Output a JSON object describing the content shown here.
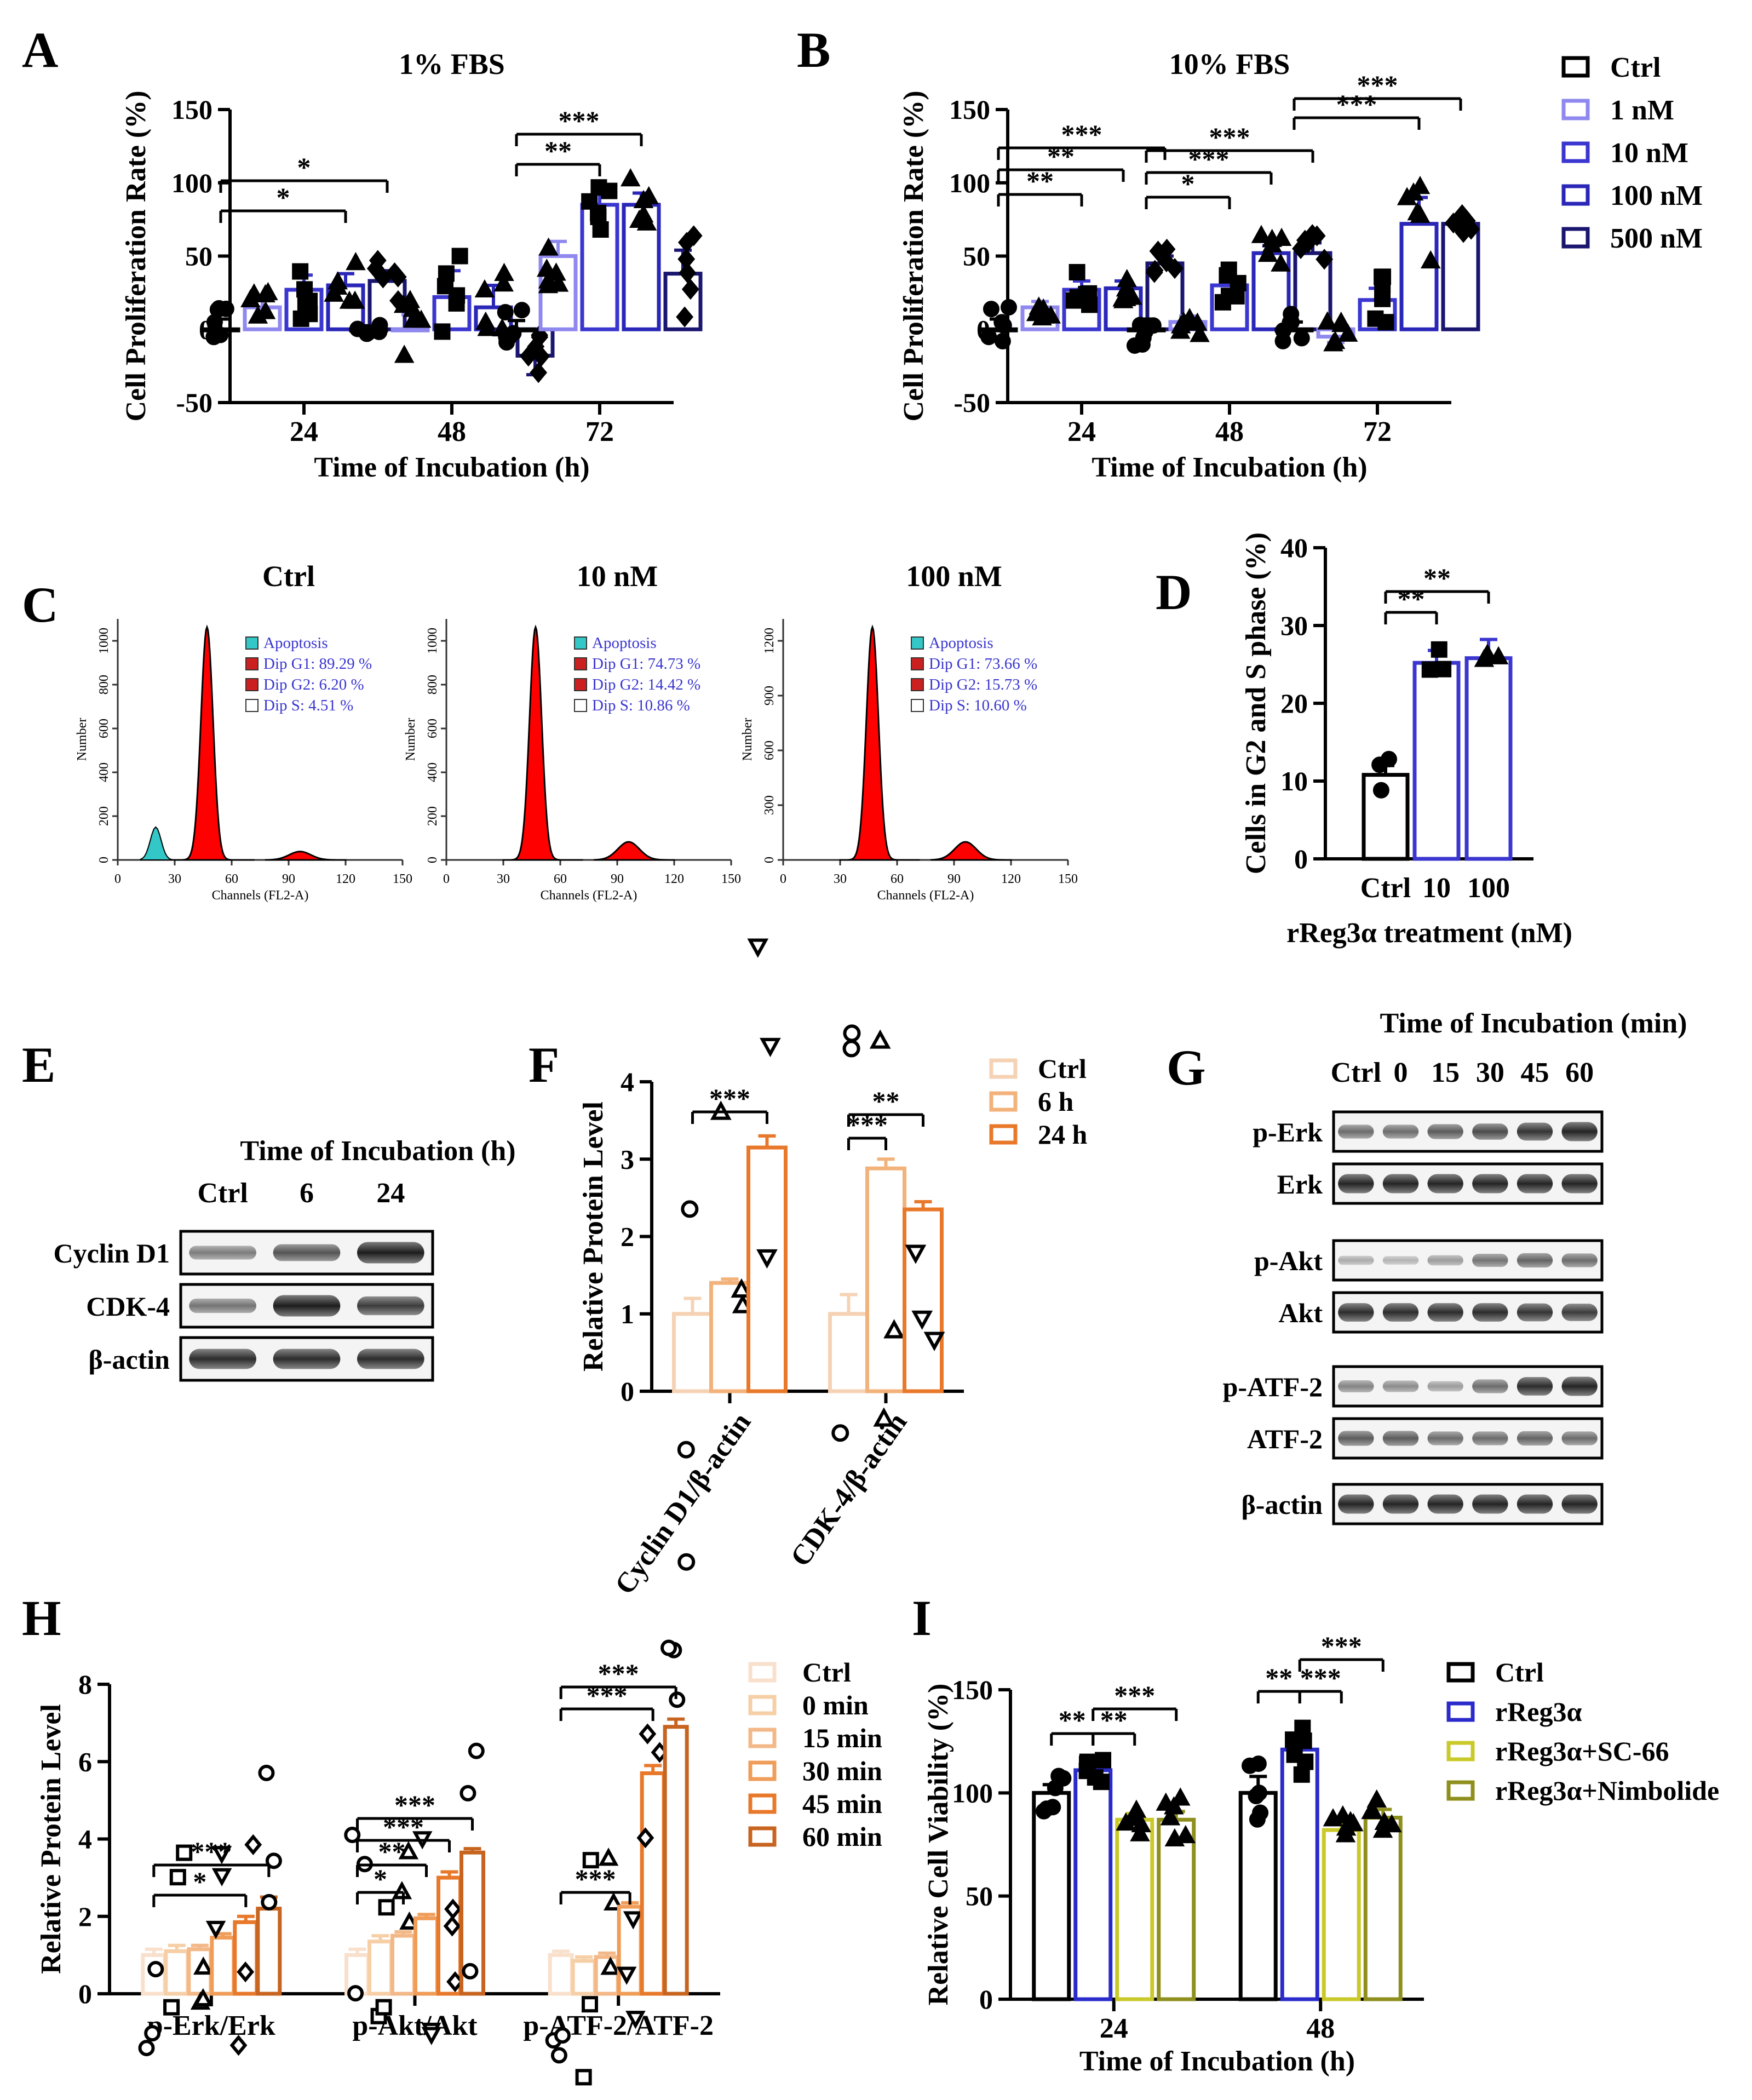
{
  "colors": {
    "ctrl": "#000000",
    "nm1": "#8f88ef",
    "nm10": "#3a36cf",
    "nm100": "#2a26b8",
    "nm500": "#1a1670",
    "o_ctrl": "#f6d2b4",
    "o_mid": "#f2b27a",
    "o_dark": "#e8782a",
    "i_rreg": "#2b2bcc",
    "i_sc": "#c9c92a",
    "i_nimb": "#8f8f1e",
    "flow_red": "#ff0000",
    "flow_cyan": "#33c7c7",
    "flow_text": "#3a36cf"
  },
  "panels": {
    "A": "A",
    "B": "B",
    "C": "C",
    "D": "D",
    "E": "E",
    "F": "F",
    "G": "G",
    "H": "H",
    "I": "I"
  },
  "legend_AB": [
    "Ctrl",
    "1 nM",
    "10 nM",
    "100 nM",
    "500 nM"
  ],
  "legend_F": [
    "Ctrl",
    "6 h",
    "24 h"
  ],
  "legend_H": [
    "Ctrl",
    "0 min",
    "15 min",
    "30 min",
    "45 min",
    "60 min"
  ],
  "legend_I": [
    "Ctrl",
    "rReg3α",
    "rReg3α+SC-66",
    "rReg3α+Nimbolide"
  ],
  "chart_data": [
    {
      "id": "A",
      "type": "bar",
      "title": "1% FBS",
      "xlabel": "Time of Incubation (h)",
      "ylabel": "Cell Proliferation Rate (%)",
      "ylim": [
        -50,
        150
      ],
      "yticks": [
        "-50",
        "0",
        "50",
        "100",
        "150"
      ],
      "categories": [
        "24",
        "48",
        "72"
      ],
      "series": [
        {
          "name": "Ctrl",
          "values": [
            0,
            0,
            0
          ],
          "err": [
            7,
            0,
            6
          ]
        },
        {
          "name": "1 nM",
          "values": [
            15,
            0,
            50
          ],
          "err": [
            5,
            10,
            10
          ]
        },
        {
          "name": "10 nM",
          "values": [
            27,
            22,
            85
          ],
          "err": [
            10,
            18,
            8
          ]
        },
        {
          "name": "100 nM",
          "values": [
            30,
            15,
            85
          ],
          "err": [
            8,
            15,
            8
          ]
        },
        {
          "name": "500 nM",
          "values": [
            33,
            -18,
            38
          ],
          "err": [
            7,
            13,
            16
          ]
        }
      ],
      "significance": [
        "*",
        "*",
        "**",
        "***"
      ]
    },
    {
      "id": "B",
      "type": "bar",
      "title": "10% FBS",
      "xlabel": "Time of Incubation (h)",
      "ylabel": "Cell Proliferation Rate (%)",
      "ylim": [
        -50,
        150
      ],
      "yticks": [
        "-50",
        "0",
        "50",
        "100",
        "150"
      ],
      "categories": [
        "24",
        "48",
        "72"
      ],
      "series": [
        {
          "name": "Ctrl",
          "values": [
            0,
            0,
            0
          ],
          "err": [
            7,
            7,
            5
          ]
        },
        {
          "name": "1 nM",
          "values": [
            15,
            5,
            -5
          ],
          "err": [
            4,
            4,
            4
          ]
        },
        {
          "name": "10 nM",
          "values": [
            27,
            30,
            20
          ],
          "err": [
            6,
            5,
            8
          ]
        },
        {
          "name": "100 nM",
          "values": [
            28,
            52,
            72
          ],
          "err": [
            5,
            5,
            18
          ]
        },
        {
          "name": "500 nM",
          "values": [
            45,
            52,
            72
          ],
          "err": [
            5,
            7,
            3
          ]
        }
      ],
      "significance": [
        "**",
        "**",
        "***",
        "*",
        "***",
        "***",
        "***",
        "***"
      ]
    },
    {
      "id": "C",
      "type": "histogram",
      "xlabel": "Channels (FL2-A)",
      "ylabel": "Number",
      "xticks": [
        "0",
        "30",
        "60",
        "90",
        "120",
        "150"
      ],
      "plots": [
        {
          "title": "Ctrl",
          "yticks": [
            "0",
            "200",
            "400",
            "600",
            "800",
            "1000"
          ],
          "legend": [
            "Apoptosis",
            "Dip G1: 89.29 %",
            "Dip G2: 6.20 %",
            "Dip S: 4.51 %"
          ]
        },
        {
          "title": "10 nM",
          "yticks": [
            "0",
            "200",
            "400",
            "600",
            "800",
            "1000"
          ],
          "legend": [
            "Apoptosis",
            "Dip G1: 74.73 %",
            "Dip G2: 14.42 %",
            "Dip S: 10.86 %"
          ]
        },
        {
          "title": "100 nM",
          "yticks": [
            "0",
            "300",
            "600",
            "900",
            "1200"
          ],
          "legend": [
            "Apoptosis",
            "Dip G1: 73.66 %",
            "Dip G2: 15.73 %",
            "Dip S: 10.60 %"
          ]
        }
      ]
    },
    {
      "id": "D",
      "type": "bar",
      "xlabel": "rReg3α treatment (nM)",
      "ylabel": "Cells in G2 and S phase (%)",
      "ylim": [
        0,
        40
      ],
      "yticks": [
        "0",
        "10",
        "20",
        "30",
        "40"
      ],
      "categories": [
        "Ctrl",
        "10",
        "100"
      ],
      "values": [
        10.8,
        25.2,
        25.8
      ],
      "err": [
        1.2,
        1.6,
        2.4
      ],
      "significance": [
        "**",
        "**"
      ]
    },
    {
      "id": "F",
      "type": "bar",
      "ylabel": "Relative Protein Level",
      "ylim": [
        0,
        4
      ],
      "yticks": [
        "0",
        "1",
        "2",
        "3",
        "4"
      ],
      "categories": [
        "Cyclin D1/β-actin",
        "CDK-4/β-actin"
      ],
      "series": [
        {
          "name": "Ctrl",
          "values": [
            1.0,
            1.0
          ],
          "err": [
            0.2,
            0.25
          ]
        },
        {
          "name": "6 h",
          "values": [
            1.4,
            2.88
          ],
          "err": [
            0.05,
            0.12
          ]
        },
        {
          "name": "24 h",
          "values": [
            3.15,
            2.35
          ],
          "err": [
            0.15,
            0.1
          ]
        }
      ],
      "significance": [
        "***",
        "***",
        "**"
      ]
    },
    {
      "id": "H",
      "type": "bar",
      "ylabel": "Relative Protein Level",
      "ylim": [
        0,
        8
      ],
      "yticks": [
        "0",
        "2",
        "4",
        "6",
        "8"
      ],
      "categories": [
        "p-Erk/Erk",
        "p-Akt/Akt",
        "p-ATF-2/ATF-2"
      ],
      "series": [
        {
          "name": "Ctrl",
          "values": [
            1.0,
            1.0,
            1.0
          ],
          "err": [
            0.15,
            0.15,
            0.1
          ]
        },
        {
          "name": "0 min",
          "values": [
            1.1,
            1.35,
            0.85
          ],
          "err": [
            0.15,
            0.15,
            0.1
          ]
        },
        {
          "name": "15 min",
          "values": [
            1.15,
            1.5,
            0.95
          ],
          "err": [
            0.1,
            0.1,
            0.1
          ]
        },
        {
          "name": "30 min",
          "values": [
            1.45,
            1.95,
            2.25
          ],
          "err": [
            0.1,
            0.1,
            0.1
          ]
        },
        {
          "name": "45 min",
          "values": [
            1.85,
            3.0,
            5.7
          ],
          "err": [
            0.15,
            0.15,
            0.2
          ]
        },
        {
          "name": "60 min",
          "values": [
            2.2,
            3.65,
            6.9
          ],
          "err": [
            0.3,
            0.1,
            0.2
          ]
        }
      ],
      "significance": [
        "*",
        "***",
        "*",
        "**",
        "***",
        "***",
        "***",
        "***",
        "***"
      ]
    },
    {
      "id": "I",
      "type": "bar",
      "xlabel": "Time of Incubation (h)",
      "ylabel": "Relative Cell Viability (%)",
      "ylim": [
        0,
        150
      ],
      "yticks": [
        "0",
        "50",
        "100",
        "150"
      ],
      "categories": [
        "24",
        "48"
      ],
      "series": [
        {
          "name": "Ctrl",
          "values": [
            100,
            100
          ],
          "err": [
            4,
            8
          ]
        },
        {
          "name": "rReg3α",
          "values": [
            111,
            121
          ],
          "err": [
            3,
            7
          ]
        },
        {
          "name": "rReg3α+SC-66",
          "values": [
            87,
            82
          ],
          "err": [
            3,
            3
          ]
        },
        {
          "name": "rReg3α+Nimbolide",
          "values": [
            87,
            88
          ],
          "err": [
            4,
            4
          ]
        }
      ],
      "significance": [
        "**",
        "**",
        "***",
        "**",
        "***",
        "***"
      ]
    }
  ],
  "blot_E": {
    "header": "Time of Incubation (h)",
    "lanes": [
      "Ctrl",
      "6",
      "24"
    ],
    "rows": [
      "Cyclin D1",
      "CDK-4",
      "β-actin"
    ]
  },
  "blot_G": {
    "header": "Time of Incubation (min)",
    "lanes": [
      "Ctrl",
      "0",
      "15",
      "30",
      "45",
      "60"
    ],
    "rows": [
      "p-Erk",
      "Erk",
      "p-Akt",
      "Akt",
      "p-ATF-2",
      "ATF-2",
      "β-actin"
    ]
  }
}
